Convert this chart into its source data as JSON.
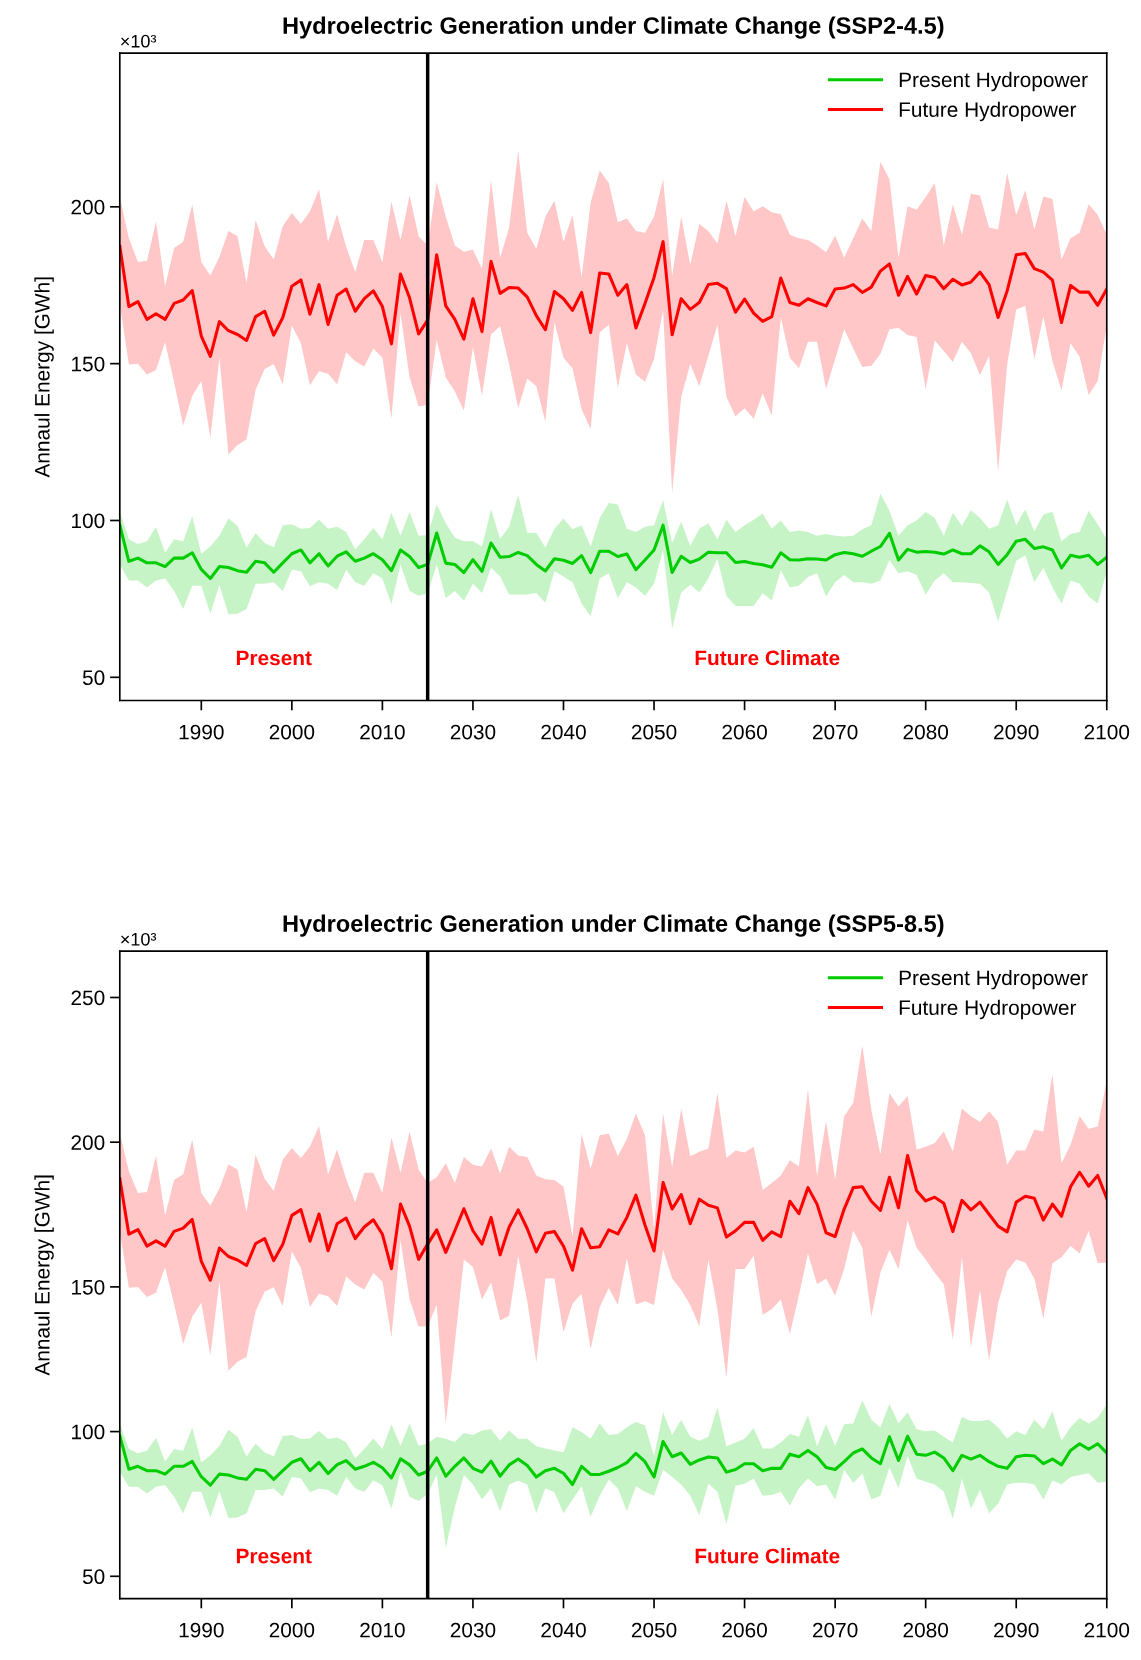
{
  "chart_data": [
    {
      "type": "line",
      "title": "Hydroelectric Generation under Climate Change (SSP2-4.5)",
      "ylabel": "Annaul Energy [GWh]",
      "categories": [
        null,
        null,
        null,
        null,
        null,
        null,
        null,
        null,
        null,
        "1990",
        null,
        null,
        null,
        null,
        null,
        null,
        null,
        null,
        null,
        "2000",
        null,
        null,
        null,
        null,
        null,
        null,
        null,
        null,
        null,
        "2010",
        null,
        null,
        null,
        null,
        null,
        null,
        null,
        null,
        null,
        "2030",
        null,
        null,
        null,
        null,
        null,
        null,
        null,
        null,
        null,
        "2040",
        null,
        null,
        null,
        null,
        null,
        null,
        null,
        null,
        null,
        "2050",
        null,
        null,
        null,
        null,
        null,
        null,
        null,
        null,
        null,
        "2060",
        null,
        null,
        null,
        null,
        null,
        null,
        null,
        null,
        null,
        "2070",
        null,
        null,
        null,
        null,
        null,
        null,
        null,
        null,
        null,
        "2080",
        null,
        null,
        null,
        null,
        null,
        null,
        null,
        null,
        null,
        "2090",
        null,
        null,
        null,
        null,
        null,
        null,
        null,
        null,
        null,
        "2100"
      ],
      "ylim": [
        42.6,
        249
      ],
      "yticks": [
        50,
        100,
        150,
        200
      ],
      "legend": "top right",
      "line_style": "solid",
      "marker": "none",
      "annotations": [
        "×10³",
        "Present",
        "Future Climate"
      ],
      "series": [
        {
          "name": "Present Hydropower",
          "color": "#00cc00",
          "values": [
            98.5,
            87,
            88,
            86.5,
            86.5,
            85.3,
            88,
            88,
            89.7,
            84.4,
            81.5,
            85.3,
            85,
            84,
            83.5,
            87,
            86.5,
            83.5,
            86.5,
            89.4,
            90.6,
            86.5,
            89.4,
            85.5,
            88.6,
            90,
            87,
            88,
            89.4,
            87.5,
            84,
            90.6,
            88.5,
            85,
            86,
            96,
            86.4,
            86,
            83.4,
            87.5,
            83.8,
            92.8,
            88.3,
            88.5,
            89.8,
            88.8,
            86,
            83.9,
            87.8,
            87.3,
            86.3,
            88.8,
            83.4,
            90.2,
            90.2,
            88.5,
            89.3,
            84.3,
            87.4,
            90.6,
            98.5,
            83.4,
            88.6,
            86.6,
            87.7,
            89.9,
            89.7,
            89.7,
            86.6,
            86.9,
            86.3,
            85.9,
            85.1,
            89.7,
            87.5,
            87.4,
            87.8,
            87.7,
            87.4,
            89.1,
            89.8,
            89.4,
            88.6,
            90.2,
            91.7,
            95.9,
            87.4,
            90.8,
            89.9,
            90.1,
            89.9,
            89.3,
            90.6,
            89.4,
            89.4,
            91.9,
            90.0,
            86.0,
            89.1,
            93.4,
            94.0,
            91.1,
            91.6,
            90.6,
            84.9,
            88.9,
            88.3,
            88.9,
            86.0,
            88.3
          ],
          "upper": [
            102.8,
            94.0,
            92.5,
            93.4,
            97.9,
            89.7,
            94.0,
            93.4,
            101.4,
            89.4,
            91.7,
            95.1,
            100.6,
            98.2,
            91.4,
            95.9,
            92.8,
            91.5,
            98.5,
            98.8,
            97.4,
            97.6,
            100.2,
            97.4,
            98.0,
            96.3,
            90.8,
            94.0,
            97.6,
            94.0,
            102.5,
            95.1,
            102.7,
            95.1,
            95.3,
            105.1,
            99.1,
            94.6,
            93.4,
            93.4,
            91.7,
            103.6,
            94.2,
            98.0,
            108.2,
            96.1,
            96.1,
            91.4,
            97.4,
            100.6,
            97.2,
            98.5,
            91.7,
            100.8,
            105.6,
            105.1,
            97.4,
            96.3,
            98.0,
            98.5,
            106.5,
            92.8,
            99.7,
            91.9,
            97.4,
            99.1,
            94.0,
            100.2,
            96.3,
            98.5,
            100.2,
            102.2,
            97.4,
            100,
            96.3,
            96.8,
            96.3,
            95.1,
            95.7,
            95.1,
            94.9,
            95.1,
            97.2,
            98.5,
            108.5,
            103.1,
            95.1,
            98.5,
            100,
            102.7,
            100.8,
            95.1,
            102.5,
            98.3,
            103.3,
            100.8,
            97.4,
            98.5,
            106.7,
            98.5,
            103.6,
            96.5,
            101.9,
            102.8,
            93.4,
            95.7,
            96.3,
            103.1,
            98.8,
            94.0
          ],
          "lower": [
            86.0,
            80.9,
            80.9,
            78.6,
            80.9,
            81.5,
            77.5,
            71.8,
            79.2,
            79.2,
            70.3,
            79.4,
            70.1,
            70.3,
            71.8,
            79.8,
            79.8,
            80.3,
            77.5,
            84.3,
            83.8,
            79.0,
            80.3,
            79.8,
            77.8,
            84.3,
            80.3,
            79.2,
            83.2,
            81.5,
            73.3,
            86.0,
            77.5,
            76.0,
            76.7,
            86.0,
            75.2,
            77.5,
            74.4,
            79.8,
            76.9,
            84.9,
            82.1,
            76.4,
            76.4,
            76.4,
            76.9,
            73.8,
            83.8,
            82.1,
            80.3,
            73.5,
            69.5,
            81.5,
            83.2,
            75.2,
            80.3,
            78.6,
            76.0,
            79.8,
            90.6,
            65.6,
            77.0,
            79.5,
            77.0,
            81.5,
            87.8,
            75.9,
            72.7,
            72.7,
            72.7,
            76.8,
            74.5,
            84.1,
            78.6,
            79.2,
            82.0,
            83.2,
            75.8,
            80.3,
            82.6,
            80.3,
            80.3,
            79.8,
            80.9,
            87.4,
            83.2,
            83.8,
            82.6,
            76.4,
            80.9,
            83.2,
            80.3,
            80.3,
            80.1,
            79.8,
            77.0,
            67.8,
            77.5,
            87.2,
            88.9,
            80.3,
            84.9,
            78.6,
            73.5,
            80.9,
            79.8,
            75.8,
            73.5,
            83.8
          ]
        },
        {
          "name": "Future Hydropower",
          "color": "#ff0000",
          "values": [
            187.4,
            168.2,
            169.8,
            164.1,
            165.9,
            164.1,
            169.2,
            170.3,
            173.3,
            158.8,
            152.3,
            163.4,
            160.5,
            159.3,
            157.4,
            165.0,
            166.7,
            159.1,
            164.7,
            174.7,
            176.7,
            165.8,
            175.2,
            162.5,
            171.8,
            173.8,
            166.7,
            170.7,
            173.2,
            168.2,
            156.3,
            178.6,
            171.0,
            159.5,
            163.9,
            184.7,
            168.4,
            164.1,
            157.8,
            170.7,
            160.2,
            182.6,
            172.4,
            174.3,
            174.1,
            171.2,
            165.3,
            160.8,
            173.0,
            170.7,
            167.0,
            172.7,
            159.9,
            178.9,
            178.6,
            171.8,
            175.2,
            161.4,
            169.2,
            177.5,
            188.9,
            159.2,
            170.7,
            167.3,
            169.5,
            175.2,
            175.6,
            173.9,
            166.4,
            170.6,
            166.1,
            163.5,
            165.0,
            177.3,
            169.5,
            168.6,
            170.7,
            169.5,
            168.4,
            173.8,
            174.1,
            175.2,
            172.7,
            174.4,
            179.5,
            181.8,
            171.8,
            177.8,
            172.2,
            178.1,
            177.5,
            173.9,
            176.9,
            175.1,
            176.0,
            179.2,
            175.2,
            164.7,
            173.2,
            184.7,
            185.1,
            180.3,
            179.2,
            176.6,
            163.1,
            174.9,
            172.8,
            172.8,
            168.6,
            173.8
          ],
          "upper": [
            203.1,
            190,
            182.4,
            182.8,
            195.3,
            174.7,
            186.9,
            188.9,
            200.8,
            182.4,
            178.1,
            184,
            192.3,
            190.6,
            175.8,
            195.7,
            187.4,
            183.2,
            193.9,
            198,
            194.5,
            198.5,
            205.6,
            188.9,
            197.6,
            187.2,
            179.2,
            189.4,
            189.4,
            182.4,
            201.6,
            189.4,
            203.6,
            190.6,
            187.7,
            207.8,
            196.8,
            187.7,
            185.7,
            186.3,
            180.3,
            208.5,
            183.8,
            193.4,
            217.8,
            191.7,
            186.6,
            196.8,
            201.9,
            188.9,
            197.4,
            177.5,
            201.4,
            211.6,
            207.6,
            195.1,
            196.3,
            192.3,
            191.7,
            196.8,
            208.8,
            178.1,
            196.8,
            181.5,
            194.5,
            192.3,
            188.3,
            201.9,
            190.6,
            203.1,
            198.5,
            200.2,
            198.3,
            197.6,
            191.1,
            190.0,
            189.4,
            187.7,
            185.5,
            190.8,
            183.8,
            190,
            196.3,
            192.3,
            214.4,
            208.8,
            183.8,
            200.2,
            199.1,
            203.1,
            207.6,
            187.7,
            200.8,
            191.1,
            204.2,
            203.6,
            193.4,
            192.8,
            210.8,
            197.4,
            205.3,
            192.8,
            203.3,
            202.5,
            183.2,
            190,
            191.7,
            200.8,
            197.4,
            191.1
          ],
          "lower": [
            169,
            149.7,
            150,
            146.5,
            148,
            156.8,
            144,
            130.3,
            139.7,
            144.5,
            126.4,
            151.9,
            121,
            124.1,
            125.8,
            141.7,
            148.3,
            149.9,
            143.4,
            162.2,
            156.5,
            143.1,
            147.6,
            146.8,
            143.4,
            153.6,
            150.8,
            149.1,
            154.8,
            151.9,
            132.6,
            166.1,
            145.7,
            136.3,
            136.9,
            157.6,
            145.7,
            141.1,
            135.1,
            155.3,
            139.7,
            159.3,
            161.9,
            149.7,
            135.8,
            145.3,
            142.8,
            131.5,
            163.3,
            151.9,
            148.5,
            135.5,
            129.2,
            159.9,
            162.4,
            142.3,
            156.5,
            146.5,
            144.2,
            151.4,
            167.3,
            108.8,
            139.4,
            149.9,
            142.8,
            152.5,
            162.4,
            139.4,
            133.2,
            135.8,
            132.4,
            140.6,
            133.5,
            164.7,
            151.9,
            148.5,
            157,
            157,
            141.9,
            151.4,
            161,
            154.8,
            148.9,
            149.3,
            153.1,
            161,
            161.4,
            159.1,
            158.5,
            141.9,
            157.4,
            154,
            150.5,
            157,
            153.3,
            146.3,
            152.5,
            115.6,
            149.7,
            167.3,
            168.4,
            151.4,
            165,
            150.8,
            141.5,
            156.5,
            152.2,
            140,
            144.5,
            162.2
          ]
        }
      ]
    },
    {
      "type": "line",
      "title": "Hydroelectric Generation under Climate Change (SSP5-8.5)",
      "ylabel": "Annaul Energy [GWh]",
      "categories": [
        null,
        null,
        null,
        null,
        null,
        null,
        null,
        null,
        null,
        "1990",
        null,
        null,
        null,
        null,
        null,
        null,
        null,
        null,
        null,
        "2000",
        null,
        null,
        null,
        null,
        null,
        null,
        null,
        null,
        null,
        "2010",
        null,
        null,
        null,
        null,
        null,
        null,
        null,
        null,
        null,
        "2030",
        null,
        null,
        null,
        null,
        null,
        null,
        null,
        null,
        null,
        "2040",
        null,
        null,
        null,
        null,
        null,
        null,
        null,
        null,
        null,
        "2050",
        null,
        null,
        null,
        null,
        null,
        null,
        null,
        null,
        null,
        "2060",
        null,
        null,
        null,
        null,
        null,
        null,
        null,
        null,
        null,
        "2070",
        null,
        null,
        null,
        null,
        null,
        null,
        null,
        null,
        null,
        "2080",
        null,
        null,
        null,
        null,
        null,
        null,
        null,
        null,
        null,
        "2090",
        null,
        null,
        null,
        null,
        null,
        null,
        null,
        null,
        null,
        "2100"
      ],
      "ylim": [
        42.3,
        266
      ],
      "yticks": [
        50,
        100,
        150,
        200,
        250
      ],
      "legend": "top right",
      "line_style": "solid",
      "marker": "none",
      "annotations": [
        "×10³",
        "Present",
        "Future Climate"
      ],
      "series": [
        {
          "name": "Present Hydropower",
          "color": "#00cc00",
          "values": [
            98.5,
            87,
            88,
            86.5,
            86.5,
            85.3,
            88,
            88,
            89.7,
            84.4,
            81.5,
            85.3,
            85,
            84,
            83.5,
            87,
            86.5,
            83.5,
            86.5,
            89.4,
            90.6,
            86.5,
            89.4,
            85.5,
            88.6,
            90,
            87,
            88,
            89.4,
            87.5,
            84,
            90.6,
            88.5,
            85,
            86.3,
            90.9,
            84.6,
            88.0,
            90.9,
            87.3,
            86.0,
            89.8,
            84.6,
            88.5,
            90.5,
            88.3,
            84.3,
            86.5,
            87.3,
            85.6,
            81.7,
            88.0,
            85.2,
            85.2,
            86.3,
            87.6,
            89.3,
            92.5,
            89.6,
            84.3,
            96.6,
            91.3,
            92.6,
            88.7,
            90.2,
            91.2,
            90.9,
            86.0,
            86.9,
            88.9,
            88.9,
            86.5,
            87.3,
            87.3,
            92.2,
            91.3,
            93.5,
            91.3,
            87.6,
            86.9,
            89.6,
            92.6,
            94.0,
            90.9,
            88.9,
            98.2,
            90.0,
            98.4,
            92.2,
            91.8,
            92.9,
            90.9,
            86.5,
            91.8,
            90.5,
            91.8,
            89.6,
            88.0,
            87.3,
            91.3,
            91.8,
            91.6,
            88.9,
            90.5,
            88.5,
            93.5,
            95.8,
            93.9,
            95.8,
            92.6
          ],
          "upper": [
            102.8,
            94.0,
            92.5,
            93.4,
            97.9,
            89.7,
            94.0,
            93.4,
            101.4,
            89.4,
            91.7,
            95.1,
            100.6,
            98.2,
            91.4,
            95.9,
            92.8,
            91.5,
            98.5,
            98.8,
            97.4,
            97.6,
            100.2,
            97.4,
            98.0,
            96.3,
            90.8,
            94.0,
            97.6,
            94.0,
            102.5,
            95.1,
            102.7,
            95.1,
            95.9,
            98.2,
            97.5,
            96.4,
            99.5,
            98.8,
            100.4,
            100.8,
            96.8,
            100.4,
            97.5,
            97.5,
            94.9,
            94.2,
            93.5,
            92.9,
            101.5,
            99.9,
            97.5,
            102.8,
            98.8,
            99.2,
            101.5,
            103.4,
            102.1,
            91.6,
            106.7,
            98.8,
            104.1,
            98.2,
            96.8,
            98.2,
            108.3,
            94.9,
            96.2,
            97.5,
            101.2,
            94.2,
            94.2,
            96.2,
            99.2,
            98.2,
            105.7,
            94.9,
            102.5,
            95.1,
            102.5,
            102.8,
            110.8,
            104.1,
            101.5,
            109.5,
            102.8,
            106.7,
            100.8,
            100.1,
            100.4,
            98.2,
            96.2,
            105.0,
            103.7,
            103.7,
            104.1,
            101.5,
            97.5,
            100.1,
            98.8,
            104.1,
            100.8,
            107.0,
            96.8,
            101.5,
            104.7,
            102.8,
            104.7,
            109.5
          ],
          "lower": [
            86.0,
            80.9,
            80.9,
            78.6,
            80.9,
            81.5,
            77.5,
            71.8,
            79.2,
            79.2,
            70.3,
            79.4,
            70.1,
            70.3,
            71.8,
            79.8,
            79.8,
            80.3,
            77.5,
            84.3,
            83.8,
            79.0,
            80.3,
            79.8,
            77.8,
            84.3,
            80.3,
            79.2,
            83.2,
            81.5,
            73.3,
            86.0,
            77.5,
            76.0,
            78.4,
            85.0,
            59.9,
            73.8,
            85.0,
            81.7,
            76.5,
            80.4,
            72.5,
            81.7,
            83.0,
            81.7,
            71.8,
            80.4,
            79.0,
            71.8,
            76.5,
            81.1,
            70.6,
            77.8,
            83.4,
            80.4,
            72.5,
            81.1,
            79.2,
            77.8,
            86.8,
            84.3,
            81.7,
            77.8,
            71.2,
            82.0,
            79.2,
            68.1,
            81.3,
            82.0,
            83.8,
            77.8,
            78.1,
            79.2,
            74.5,
            80.4,
            83.8,
            81.1,
            81.7,
            76.5,
            86.8,
            82.2,
            85.5,
            76.5,
            77.8,
            87.6,
            80.4,
            91.6,
            83.8,
            82.7,
            81.7,
            79.2,
            69.9,
            83.8,
            73.3,
            79.9,
            71.8,
            75.1,
            81.7,
            82.3,
            82.3,
            81.7,
            76.5,
            83.1,
            81.7,
            84.3,
            85.0,
            85.6,
            82.3,
            82.7
          ]
        },
        {
          "name": "Future Hydropower",
          "color": "#ff0000",
          "values": [
            187.4,
            168.2,
            169.8,
            164.1,
            165.9,
            164.1,
            169.2,
            170.3,
            173.3,
            158.8,
            152.3,
            163.4,
            160.5,
            159.3,
            157.4,
            165.0,
            166.7,
            159.1,
            164.7,
            174.7,
            176.7,
            165.8,
            175.2,
            162.5,
            171.8,
            173.8,
            166.7,
            170.7,
            173.2,
            168.2,
            156.3,
            178.6,
            171.0,
            159.5,
            164.8,
            169.7,
            161.9,
            169.4,
            177.0,
            169.4,
            164.8,
            174.0,
            161.1,
            170.7,
            176.6,
            170.1,
            162.1,
            168.5,
            169.1,
            164.1,
            155.8,
            170.1,
            163.5,
            163.9,
            169.7,
            168.3,
            174.0,
            181.7,
            171.4,
            162.4,
            186.1,
            176.9,
            181.9,
            171.8,
            180.3,
            178.2,
            177.3,
            167.2,
            169.4,
            172.3,
            172.3,
            166.1,
            169.0,
            167.4,
            179.6,
            175.3,
            184.3,
            178.6,
            168.7,
            167.4,
            176.9,
            184.3,
            184.6,
            179.6,
            176.4,
            187.9,
            177.3,
            195.4,
            183.2,
            179.7,
            181.0,
            178.9,
            169.1,
            179.9,
            176.6,
            179.3,
            175.1,
            171.0,
            169.0,
            179.3,
            181.3,
            180.6,
            173.1,
            178.6,
            174.4,
            184.6,
            189.6,
            184.8,
            188.5,
            180.6
          ],
          "upper": [
            203.1,
            190,
            182.4,
            182.8,
            195.3,
            174.7,
            186.9,
            188.9,
            200.8,
            182.4,
            178.1,
            184,
            192.3,
            190.6,
            175.8,
            195.7,
            187.4,
            183.2,
            193.9,
            198,
            194.5,
            198.5,
            205.6,
            188.9,
            197.6,
            187.2,
            179.2,
            189.4,
            189.4,
            182.4,
            201.6,
            189.4,
            203.6,
            190.6,
            185.9,
            187.9,
            192.7,
            185.9,
            194.9,
            192.2,
            191.6,
            197.8,
            189.2,
            198.4,
            195.4,
            194.9,
            188.5,
            187.2,
            186.9,
            184.6,
            167.4,
            202.8,
            190.8,
            202.4,
            203.0,
            195.1,
            201.1,
            209.9,
            202.4,
            170.1,
            209.9,
            191.4,
            211.6,
            195.1,
            196.7,
            197.8,
            216.9,
            194.5,
            197.1,
            196.4,
            198.4,
            183.5,
            185.9,
            188.5,
            193.8,
            191.6,
            218.2,
            188.3,
            207.3,
            187.2,
            209.0,
            213.6,
            233.4,
            211.0,
            195.8,
            216.9,
            212.3,
            216.0,
            197.5,
            198.4,
            199.7,
            203.7,
            196.8,
            211.6,
            209.0,
            207.0,
            210.7,
            207.0,
            192.2,
            197.1,
            197.1,
            204.4,
            203.7,
            223.5,
            192.7,
            199.1,
            209.0,
            204.6,
            205.4,
            221.5
          ],
          "lower": [
            169,
            149.7,
            150,
            146.5,
            148,
            156.8,
            144,
            130.3,
            139.7,
            144.5,
            126.4,
            151.9,
            121,
            124.1,
            125.8,
            141.7,
            148.3,
            149.9,
            143.4,
            162.2,
            156.5,
            143.1,
            147.6,
            146.8,
            143.4,
            153.6,
            150.8,
            149.1,
            154.8,
            151.9,
            132.6,
            166.1,
            145.7,
            136.3,
            136.4,
            143.7,
            102.8,
            130.5,
            159.5,
            156.9,
            145.6,
            151.6,
            138.4,
            140.0,
            160.8,
            145.0,
            123.9,
            152.9,
            152.9,
            134.4,
            144.3,
            147.6,
            128.5,
            143.0,
            149.6,
            143.7,
            160,
            143.9,
            145.0,
            143.7,
            162.8,
            152.9,
            148.9,
            143.7,
            136.4,
            159.5,
            142.3,
            118.6,
            156.2,
            156.2,
            160.8,
            140.4,
            142.3,
            145.6,
            133.8,
            147.0,
            161.5,
            150.9,
            152.9,
            147.0,
            156.2,
            169.4,
            163.5,
            139.7,
            154.9,
            162.8,
            156.2,
            173.0,
            163.5,
            159.5,
            154.9,
            150.9,
            131.8,
            160.2,
            129.2,
            148.9,
            124.5,
            144.3,
            155.5,
            159.5,
            158.4,
            152.9,
            139.1,
            158.2,
            160.2,
            164.1,
            161.5,
            169.4,
            158.2,
            158.4
          ]
        }
      ]
    }
  ]
}
